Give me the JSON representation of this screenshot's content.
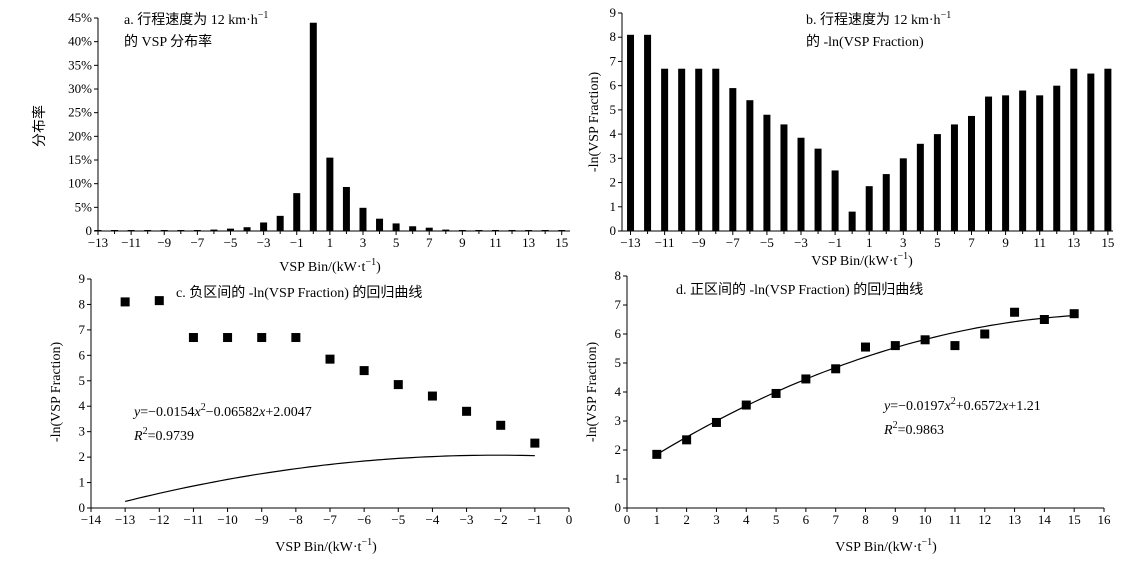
{
  "chart_data": [
    {
      "id": "a",
      "type": "bar",
      "title_line1": "a. 行程速度为 12 km·h",
      "title_sup": "−1",
      "title_line2": "的 VSP 分布率",
      "ylabel": "分布率",
      "xlabel": "VSP Bin/(kW·t",
      "xlabel_sup": "−1",
      "xlabel_end": ")",
      "xlim": [
        -13,
        15.5
      ],
      "ylim": [
        0,
        45
      ],
      "xticks": [
        -13,
        -11,
        -9,
        -7,
        -5,
        -3,
        -1,
        1,
        3,
        5,
        7,
        9,
        11,
        13,
        15
      ],
      "xtick_labels": [
        "−13",
        "−11",
        "−9",
        "−7",
        "−5",
        "−3",
        "−1",
        "1",
        "3",
        "5",
        "7",
        "9",
        "11",
        "13",
        "15"
      ],
      "yticks": [
        0,
        5,
        10,
        15,
        20,
        25,
        30,
        35,
        40,
        45
      ],
      "ytick_labels": [
        "0",
        "5%",
        "10%",
        "15%",
        "20%",
        "25%",
        "30%",
        "35%",
        "40%",
        "45%"
      ],
      "x": [
        -13,
        -12,
        -11,
        -10,
        -9,
        -8,
        -7,
        -6,
        -5,
        -4,
        -3,
        -2,
        -1,
        0,
        1,
        2,
        3,
        4,
        5,
        6,
        7,
        8,
        9,
        10,
        11,
        12,
        13,
        14,
        15
      ],
      "values": [
        0.1,
        0.1,
        0.1,
        0.1,
        0.1,
        0.1,
        0.2,
        0.3,
        0.5,
        0.8,
        1.8,
        3.2,
        8.0,
        44.0,
        15.5,
        9.3,
        4.9,
        2.6,
        1.6,
        1.0,
        0.7,
        0.3,
        0.2,
        0.1,
        0.1,
        0.1,
        0.1,
        0.1,
        0.1
      ]
    },
    {
      "id": "b",
      "type": "bar",
      "title_line1": "b. 行程速度为 12 km·h",
      "title_sup": "−1",
      "title_line2": "的 -ln(VSP Fraction)",
      "ylabel": "-ln(VSP Fraction)",
      "xlabel": "VSP Bin/(kW·t",
      "xlabel_sup": "−1",
      "xlabel_end": ")",
      "xlim": [
        -13.5,
        15.3
      ],
      "ylim": [
        0,
        9
      ],
      "xticks": [
        -13,
        -11,
        -9,
        -7,
        -5,
        -3,
        -1,
        1,
        3,
        5,
        7,
        9,
        11,
        13,
        15
      ],
      "xtick_labels": [
        "−13",
        "−11",
        "−9",
        "−7",
        "−5",
        "−3",
        "−1",
        "1",
        "3",
        "5",
        "7",
        "9",
        "11",
        "13",
        "15"
      ],
      "yticks": [
        0,
        1,
        2,
        3,
        4,
        5,
        6,
        7,
        8,
        9
      ],
      "ytick_labels": [
        "0",
        "1",
        "2",
        "3",
        "4",
        "5",
        "6",
        "7",
        "8",
        "9"
      ],
      "x": [
        -13,
        -12,
        -11,
        -10,
        -9,
        -8,
        -7,
        -6,
        -5,
        -4,
        -3,
        -2,
        -1,
        0,
        1,
        2,
        3,
        4,
        5,
        6,
        7,
        8,
        9,
        10,
        11,
        12,
        13,
        14,
        15
      ],
      "values": [
        8.1,
        8.1,
        6.7,
        6.7,
        6.7,
        6.7,
        5.9,
        5.4,
        4.8,
        4.4,
        3.85,
        3.4,
        2.5,
        0.8,
        1.85,
        2.35,
        3.0,
        3.6,
        4.0,
        4.4,
        4.75,
        5.55,
        5.6,
        5.8,
        5.6,
        6.0,
        6.7,
        6.5,
        6.7
      ]
    },
    {
      "id": "c",
      "type": "scatter",
      "title": "c. 负区间的 -ln(VSP Fraction) 的回归曲线",
      "ylabel": "-ln(VSP Fraction)",
      "xlabel": "VSP Bin/(kW·t",
      "xlabel_sup": "−1",
      "xlabel_end": ")",
      "xlim": [
        -14,
        0
      ],
      "ylim": [
        0,
        9
      ],
      "xticks": [
        -14,
        -13,
        -12,
        -11,
        -10,
        -9,
        -8,
        -7,
        -6,
        -5,
        -4,
        -3,
        -2,
        -1,
        0
      ],
      "xtick_labels": [
        "−14",
        "−13",
        "−12",
        "−11",
        "−10",
        "−9",
        "−8",
        "−7",
        "−6",
        "−5",
        "−4",
        "−3",
        "−2",
        "−1",
        "0"
      ],
      "yticks": [
        0,
        1,
        2,
        3,
        4,
        5,
        6,
        7,
        8,
        9
      ],
      "ytick_labels": [
        "0",
        "1",
        "2",
        "3",
        "4",
        "5",
        "6",
        "7",
        "8",
        "9"
      ],
      "x": [
        -13,
        -12,
        -11,
        -10,
        -9,
        -8,
        -7,
        -6,
        -5,
        -4,
        -3,
        -2,
        -1
      ],
      "y": [
        8.1,
        8.15,
        6.7,
        6.7,
        6.7,
        6.7,
        5.85,
        5.4,
        4.85,
        4.4,
        3.8,
        3.25,
        2.55
      ],
      "fit": {
        "a": -0.0154,
        "b": -0.06582,
        "c": 2.0047,
        "x_range": [
          -13,
          -1
        ]
      },
      "equation": {
        "y_sym": "y",
        "eq_sign": "=−0.0154",
        "x1": "x",
        "sup1": "2",
        "mid": "−0.06582",
        "x2": "x",
        "tail": "+2.0047",
        "r_sym": "R",
        "r_sup": "2",
        "r_val": "=0.9739"
      }
    },
    {
      "id": "d",
      "type": "scatter",
      "title": "d. 正区间的 -ln(VSP Fraction) 的回归曲线",
      "ylabel": "-ln(VSP Fraction)",
      "xlabel": "VSP Bin/(kW·t",
      "xlabel_sup": "−1",
      "xlabel_end": ")",
      "xlim": [
        0,
        16
      ],
      "ylim": [
        0,
        8
      ],
      "xticks": [
        0,
        1,
        2,
        3,
        4,
        5,
        6,
        7,
        8,
        9,
        10,
        11,
        12,
        13,
        14,
        15,
        16
      ],
      "xtick_labels": [
        "0",
        "1",
        "2",
        "3",
        "4",
        "5",
        "6",
        "7",
        "8",
        "9",
        "10",
        "11",
        "12",
        "13",
        "14",
        "15",
        "16"
      ],
      "yticks": [
        0,
        1,
        2,
        3,
        4,
        5,
        6,
        7,
        8
      ],
      "ytick_labels": [
        "0",
        "1",
        "2",
        "3",
        "4",
        "5",
        "6",
        "7",
        "8"
      ],
      "x": [
        1,
        2,
        3,
        4,
        5,
        6,
        7,
        8,
        9,
        10,
        11,
        12,
        13,
        14,
        15
      ],
      "y": [
        1.85,
        2.35,
        2.95,
        3.55,
        3.95,
        4.45,
        4.8,
        5.55,
        5.6,
        5.8,
        5.6,
        6.0,
        6.75,
        6.5,
        6.7
      ],
      "fit": {
        "a": -0.0197,
        "b": 0.6572,
        "c": 1.21,
        "x_range": [
          1,
          15
        ]
      },
      "equation": {
        "y_sym": "y",
        "eq_sign": "=−0.0197",
        "x1": "x",
        "sup1": "2",
        "mid": "+0.6572",
        "x2": "x",
        "tail": "+1.21",
        "r_sym": "R",
        "r_sup": "2",
        "r_val": "=0.9863"
      }
    }
  ]
}
